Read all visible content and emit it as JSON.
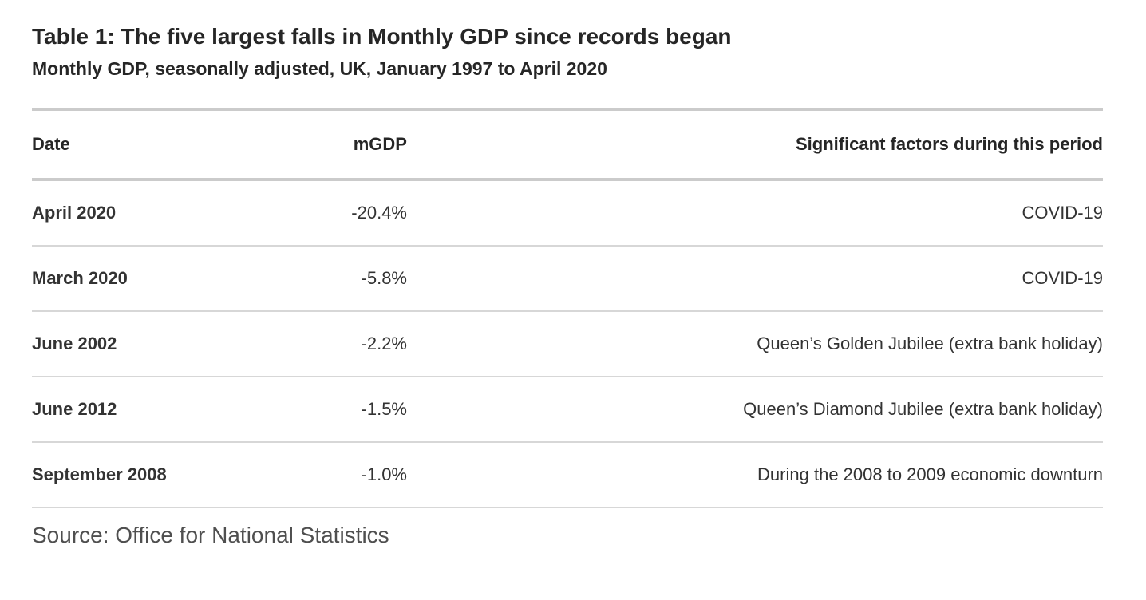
{
  "chart_data": {
    "type": "table",
    "title": "Table 1: The five largest falls in Monthly GDP since records began",
    "subtitle": "Monthly GDP, seasonally adjusted, UK, January 1997 to April 2020",
    "columns": [
      "Date",
      "mGDP",
      "Significant factors during this period"
    ],
    "rows": [
      [
        "April 2020",
        "-20.4%",
        "COVID-19"
      ],
      [
        "March 2020",
        "-5.8%",
        "COVID-19"
      ],
      [
        "June 2002",
        "-2.2%",
        "Queen’s Golden Jubilee (extra bank holiday)"
      ],
      [
        "June 2012",
        "-1.5%",
        "Queen’s Diamond Jubilee (extra bank holiday)"
      ],
      [
        "September 2008",
        "-1.0%",
        "During the 2008 to 2009 economic downturn"
      ]
    ],
    "mgdp_values_percent": [
      -20.4,
      -5.8,
      -2.2,
      -1.5,
      -1.0
    ],
    "source": "Source: Office for National Statistics",
    "layout": {
      "column_alignment": [
        "left",
        "right",
        "right"
      ],
      "grid": "horizontal-rules-only"
    }
  },
  "colors": {
    "background": "#ffffff",
    "text_primary": "#262626",
    "text_body": "#333333",
    "text_source": "#4f4f4f",
    "border_thick": "#cbcbcb",
    "border_thin": "#d7d7d7"
  }
}
